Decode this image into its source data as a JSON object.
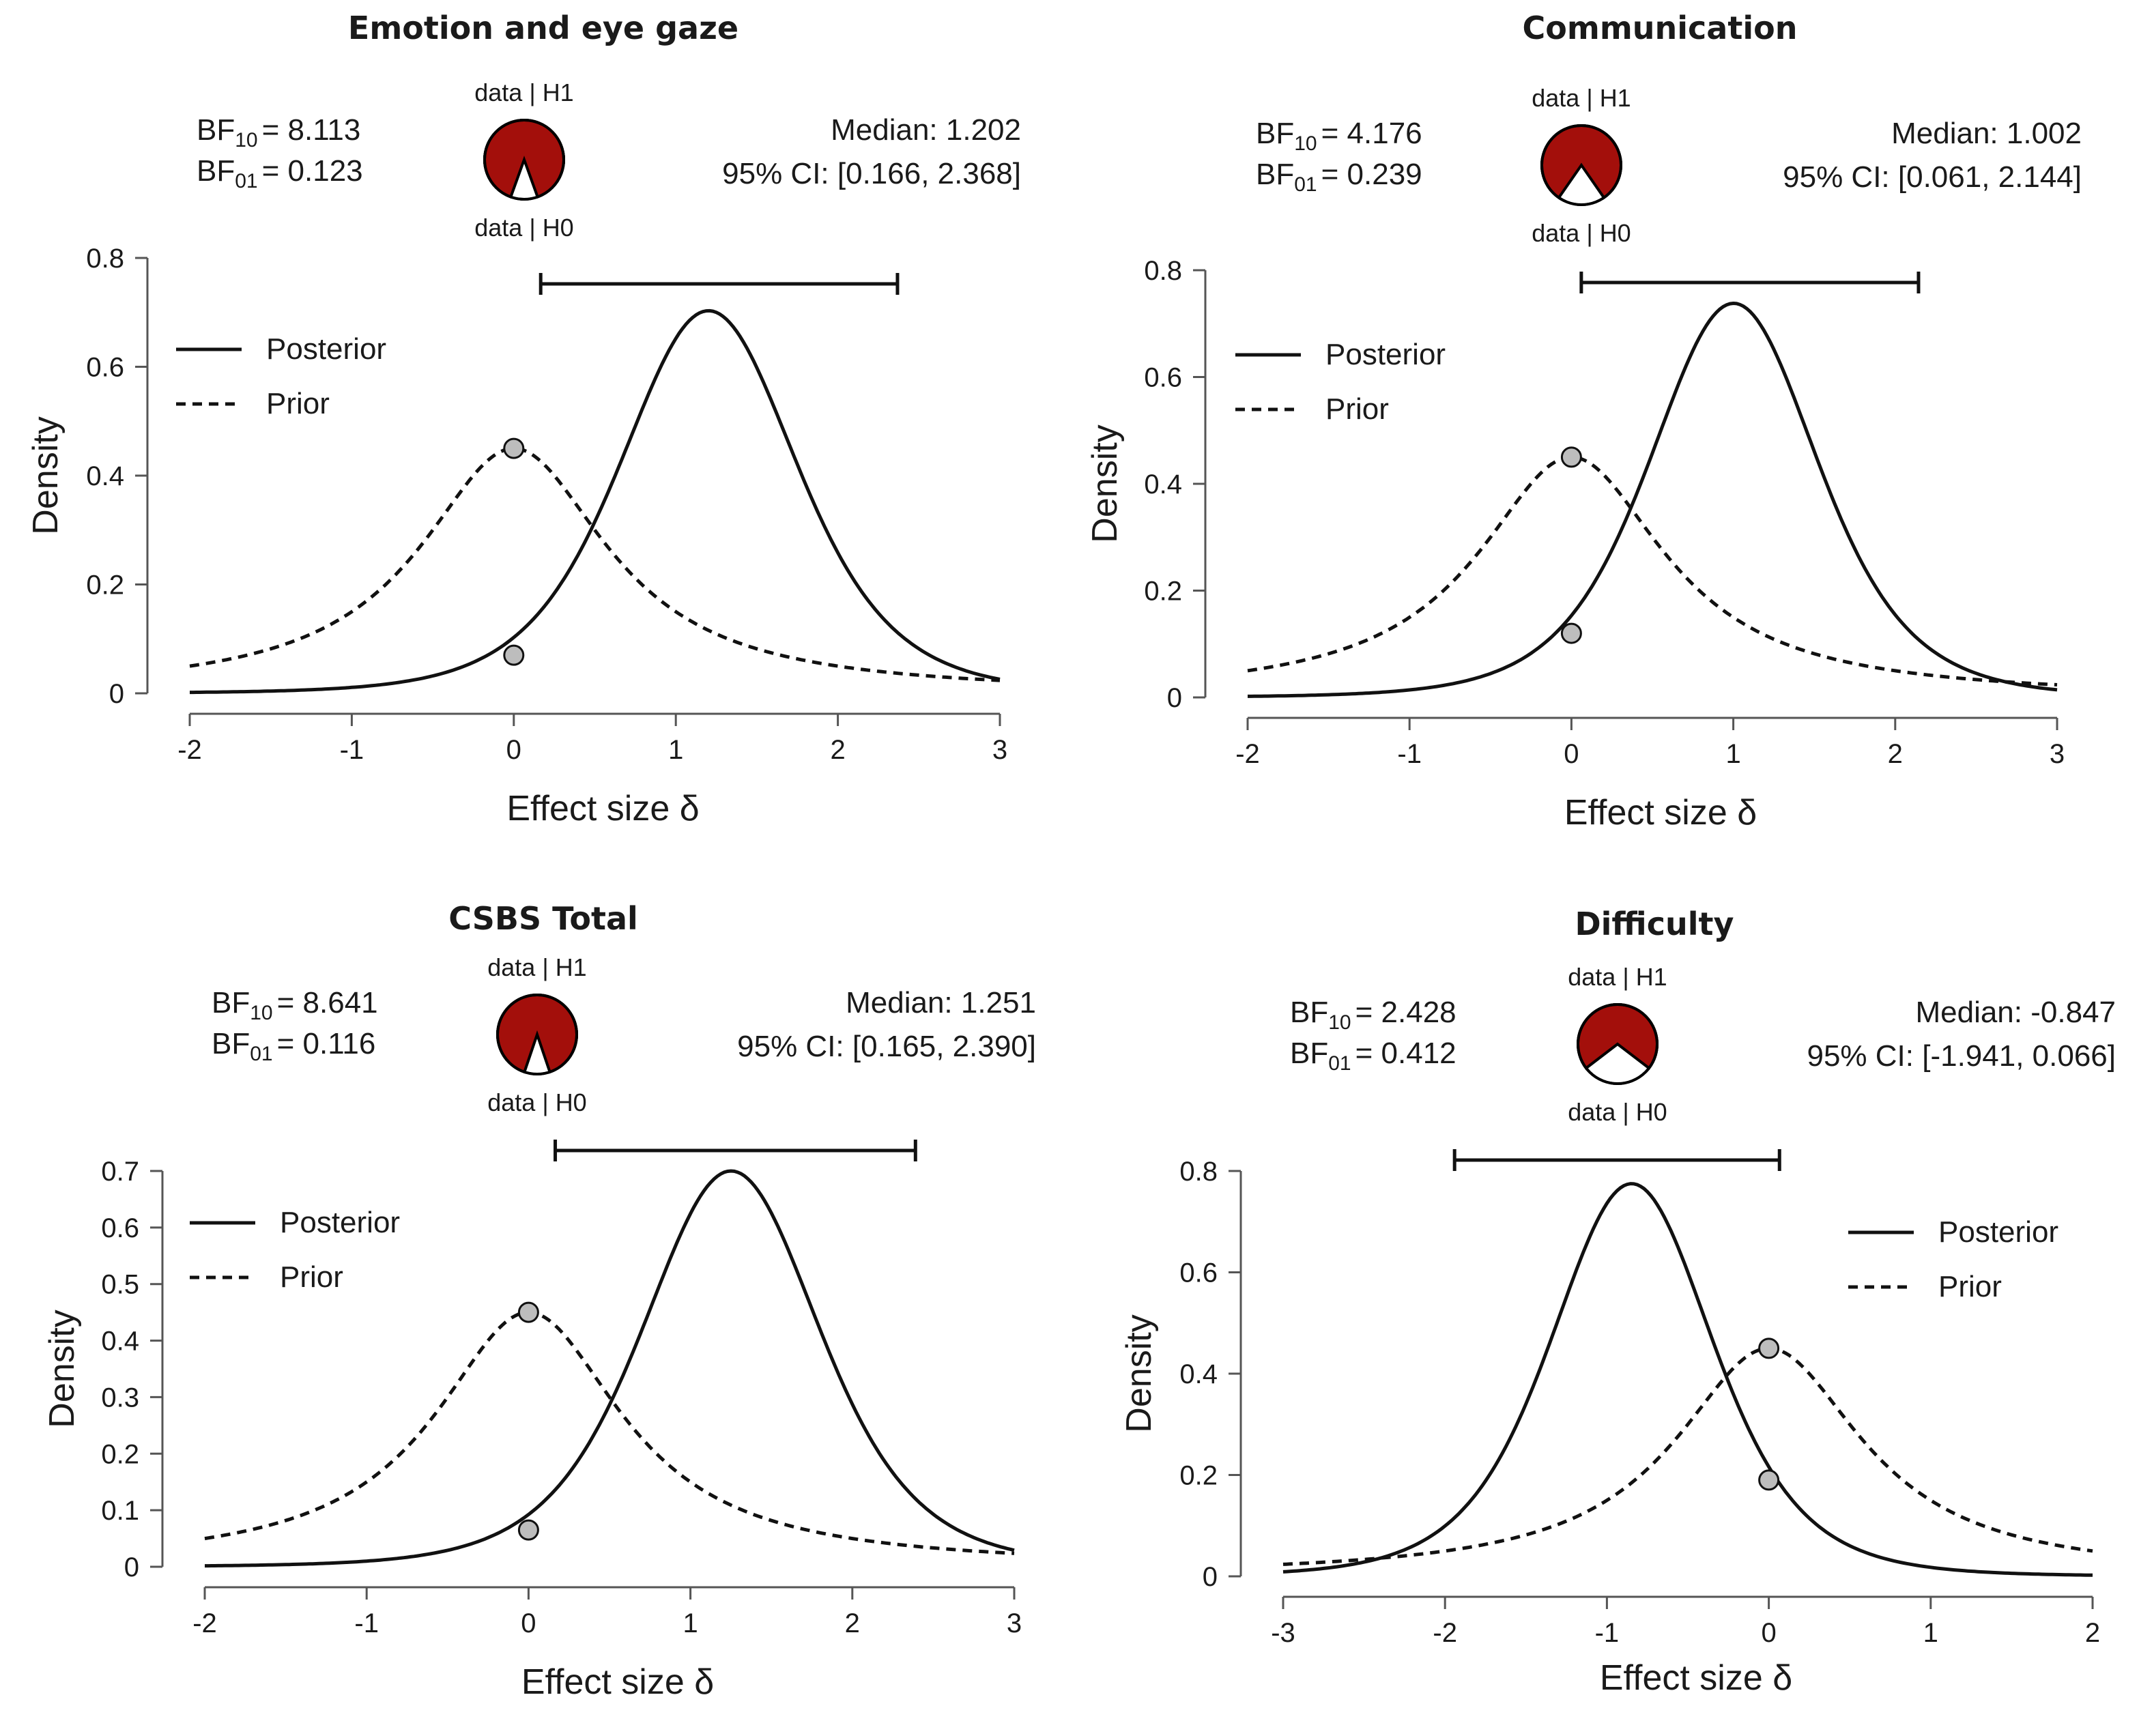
{
  "chart_data": [
    {
      "type": "line",
      "title": "Emotion and eye gaze",
      "xlabel": "Effect size δ",
      "ylabel": "Density",
      "xlim": [
        -2,
        3
      ],
      "ylim": [
        0,
        0.8
      ],
      "xticks": [
        "-2",
        "-1",
        "0",
        "1",
        "2",
        "3"
      ],
      "yticks": [
        "0",
        "0.2",
        "0.4",
        "0.6",
        "0.8"
      ],
      "bf10_text": "= 8.113",
      "bf01_text": "= 0.123",
      "median_text": "Median: 1.202",
      "ci_text": "95% CI: [0.166, 2.368]",
      "ci": [
        0.166,
        2.368
      ],
      "pie_h1_label": "data | H1",
      "pie_h0_label": "data | H0",
      "pie_h1_fraction": 0.89,
      "legend": [
        "Posterior",
        "Prior"
      ],
      "legend_position": "top-left",
      "series": [
        {
          "name": "Posterior",
          "style": "solid",
          "median": 1.202,
          "scale": 0.567,
          "peak": 0.703
        },
        {
          "name": "Prior",
          "style": "dashed",
          "scale": 0.707,
          "peak": 0.45
        }
      ],
      "points": [
        {
          "x": 0,
          "y": 0.45
        },
        {
          "x": 0,
          "y": 0.07
        }
      ]
    },
    {
      "type": "line",
      "title": "Communication",
      "xlabel": "Effect size δ",
      "ylabel": "Density",
      "xlim": [
        -2,
        3
      ],
      "ylim": [
        0,
        0.8
      ],
      "xticks": [
        "-2",
        "-1",
        "0",
        "1",
        "2",
        "3"
      ],
      "yticks": [
        "0",
        "0.2",
        "0.4",
        "0.6",
        "0.8"
      ],
      "bf10_text": "= 4.176",
      "bf01_text": "= 0.239",
      "median_text": "Median: 1.002",
      "ci_text": "95% CI: [0.061, 2.144]",
      "ci": [
        0.061,
        2.144
      ],
      "pie_h1_label": "data | H1",
      "pie_h0_label": "data | H0",
      "pie_h1_fraction": 0.807,
      "legend": [
        "Posterior",
        "Prior"
      ],
      "legend_position": "top-left",
      "series": [
        {
          "name": "Posterior",
          "style": "solid",
          "median": 1.002,
          "scale": 0.54,
          "peak": 0.738
        },
        {
          "name": "Prior",
          "style": "dashed",
          "scale": 0.707,
          "peak": 0.45
        }
      ],
      "points": [
        {
          "x": 0,
          "y": 0.45
        },
        {
          "x": 0,
          "y": 0.12
        }
      ]
    },
    {
      "type": "line",
      "title": "CSBS Total",
      "xlabel": "Effect size δ",
      "ylabel": "Density",
      "xlim": [
        -2,
        3
      ],
      "ylim": [
        0,
        0.7
      ],
      "xticks": [
        "-2",
        "-1",
        "0",
        "1",
        "2",
        "3"
      ],
      "yticks": [
        "0",
        "0.1",
        "0.2",
        "0.3",
        "0.4",
        "0.5",
        "0.6",
        "0.7"
      ],
      "bf10_text": "= 8.641",
      "bf01_text": "= 0.116",
      "median_text": "Median: 1.251",
      "ci_text": "95% CI: [0.165, 2.390]",
      "ci": [
        0.165,
        2.39
      ],
      "pie_h1_label": "data | H1",
      "pie_h0_label": "data | H0",
      "pie_h1_fraction": 0.896,
      "legend": [
        "Posterior",
        "Prior"
      ],
      "legend_position": "top-left",
      "series": [
        {
          "name": "Posterior",
          "style": "solid",
          "median": 1.251,
          "scale": 0.57,
          "peak": 0.7
        },
        {
          "name": "Prior",
          "style": "dashed",
          "scale": 0.707,
          "peak": 0.45
        }
      ],
      "points": [
        {
          "x": 0,
          "y": 0.45
        },
        {
          "x": 0,
          "y": 0.065
        }
      ]
    },
    {
      "type": "line",
      "title": "Difficulty",
      "xlabel": "Effect size δ",
      "ylabel": "Density",
      "xlim": [
        -3,
        2
      ],
      "ylim": [
        0,
        0.8
      ],
      "xticks": [
        "-3",
        "-2",
        "-1",
        "0",
        "1",
        "2"
      ],
      "yticks": [
        "0",
        "0.2",
        "0.4",
        "0.6",
        "0.8"
      ],
      "bf10_text": "= 2.428",
      "bf01_text": "= 0.412",
      "median_text": "Median: -0.847",
      "ci_text": "95% CI: [-1.941, 0.066]",
      "ci": [
        -1.941,
        0.066
      ],
      "pie_h1_label": "data | H1",
      "pie_h0_label": "data | H0",
      "pie_h1_fraction": 0.708,
      "legend": [
        "Posterior",
        "Prior"
      ],
      "legend_position": "top-right",
      "series": [
        {
          "name": "Posterior",
          "style": "solid",
          "median": -0.847,
          "scale": 0.52,
          "peak": 0.775
        },
        {
          "name": "Prior",
          "style": "dashed",
          "scale": 0.707,
          "peak": 0.45
        }
      ],
      "points": [
        {
          "x": 0,
          "y": 0.45
        },
        {
          "x": 0,
          "y": 0.19
        }
      ]
    }
  ]
}
